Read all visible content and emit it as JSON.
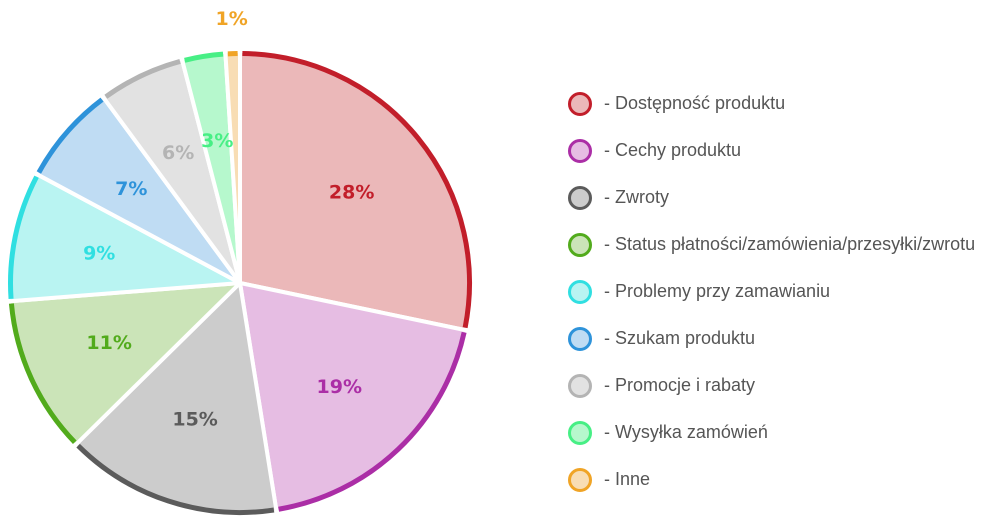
{
  "chart_data": {
    "type": "pie",
    "slices": [
      {
        "label": "- Dostępność produktu",
        "value": 28,
        "value_label": "28%",
        "fill": "#ebb8b9",
        "stroke": "#c21e2a",
        "text_color": "#c21e2a"
      },
      {
        "label": "- Cechy produktu",
        "value": 19,
        "value_label": "19%",
        "fill": "#e6bde3",
        "stroke": "#ab2ea6",
        "text_color": "#ab2ea6"
      },
      {
        "label": "- Zwroty",
        "value": 15,
        "value_label": "15%",
        "fill": "#cccccc",
        "stroke": "#5b5b5b",
        "text_color": "#5b5b5b"
      },
      {
        "label": "- Status płatności/zamówienia/przesyłki/zwrotu",
        "value": 11,
        "value_label": "11%",
        "fill": "#cbe4b8",
        "stroke": "#52ab1c",
        "text_color": "#52ab1c"
      },
      {
        "label": "- Problemy przy zamawianiu",
        "value": 9,
        "value_label": "9%",
        "fill": "#b9f4f2",
        "stroke": "#30dfe1",
        "text_color": "#30dfe1"
      },
      {
        "label": "- Szukam produktu",
        "value": 7,
        "value_label": "7%",
        "fill": "#bfdcf3",
        "stroke": "#2e93da",
        "text_color": "#2e93da"
      },
      {
        "label": "- Promocje i rabaty",
        "value": 6,
        "value_label": "6%",
        "fill": "#e2e2e2",
        "stroke": "#b4b4b4",
        "text_color": "#b4b4b4"
      },
      {
        "label": "- Wysyłka zamówień",
        "value": 3,
        "value_label": "3%",
        "fill": "#b6f8cd",
        "stroke": "#47ef85",
        "text_color": "#47ef85"
      },
      {
        "label": "- Inne",
        "value": 1,
        "value_label": "1%",
        "fill": "#f8ddb4",
        "stroke": "#f0a426",
        "text_color": "#f0a426"
      }
    ],
    "legend_position": "right"
  }
}
